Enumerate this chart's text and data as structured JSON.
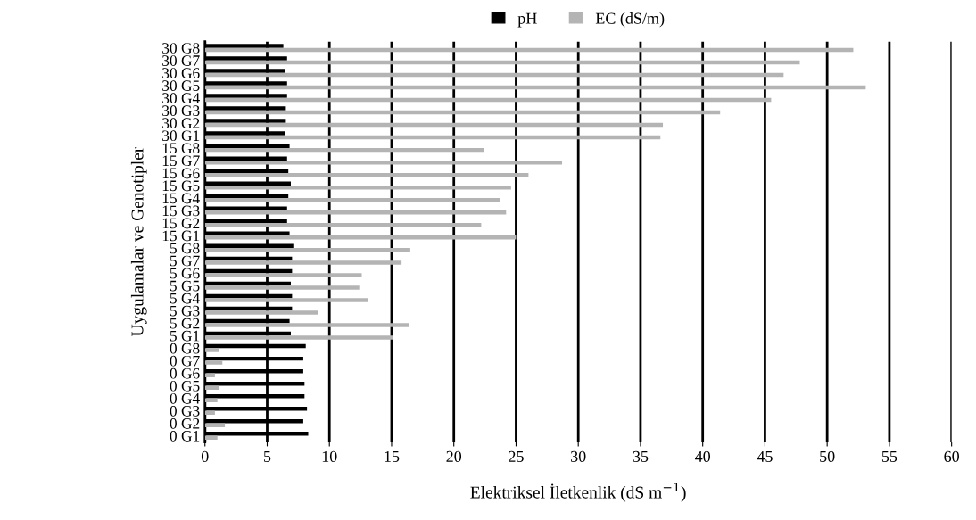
{
  "chart_data": {
    "type": "bar",
    "orientation": "horizontal",
    "xlabel": "Elektriksel İletkenlik (dS m$^{−1}$)",
    "ylabel": "Uygulamalar ve Genotipler",
    "categories": [
      "30 G8",
      "30 G7",
      "30 G6",
      "30 G5",
      "30 G4",
      "30 G3",
      "30 G2",
      "30 G1",
      "15 G8",
      "15 G7",
      "15 G6",
      "15 G5",
      "15 G4",
      "15 G3",
      "15 G2",
      "15 G1",
      "5 G8",
      "5 G7",
      "5 G6",
      "5 G5",
      "5 G4",
      "5 G3",
      "5 G2",
      "5 G1",
      "0 G8",
      "0 G7",
      "0 G6",
      "0 G5",
      "0 G4",
      "0 G3",
      "0 G2",
      "0 G1"
    ],
    "series": [
      {
        "name": "pH",
        "color": "#000000",
        "values": [
          6.3,
          6.6,
          6.4,
          6.6,
          6.6,
          6.5,
          6.5,
          6.4,
          6.8,
          6.6,
          6.7,
          6.9,
          6.7,
          6.6,
          6.6,
          6.8,
          7.1,
          7.0,
          7.0,
          6.9,
          7.0,
          7.0,
          6.8,
          6.9,
          8.1,
          7.9,
          7.9,
          8.0,
          8.0,
          8.2,
          7.9,
          8.3
        ]
      },
      {
        "name": "EC (dS/m)",
        "color": "#b4b4b4",
        "values": [
          52.1,
          47.8,
          46.5,
          53.1,
          45.5,
          41.4,
          36.8,
          36.6,
          22.4,
          28.7,
          26.0,
          24.6,
          23.7,
          24.2,
          22.2,
          25.0,
          16.5,
          15.8,
          12.6,
          12.4,
          13.1,
          9.1,
          16.4,
          15.1,
          1.1,
          1.4,
          0.8,
          1.1,
          1.0,
          0.8,
          1.6,
          1.0
        ]
      }
    ],
    "xlim": [
      0,
      60
    ],
    "xticks": [
      0,
      5,
      10,
      15,
      20,
      25,
      30,
      35,
      40,
      45,
      50,
      55,
      60
    ],
    "grid": "x",
    "legend": "top"
  }
}
